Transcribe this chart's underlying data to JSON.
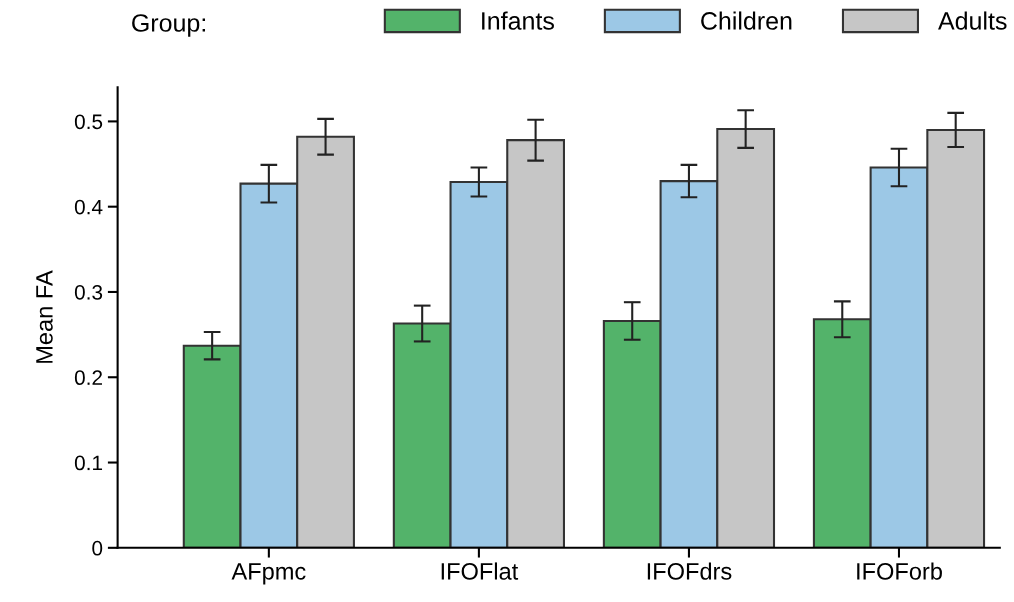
{
  "chart_data": {
    "type": "bar",
    "ylabel": "Mean FA",
    "legend_title": "Group:",
    "legend": "top",
    "categories": [
      "AFpmc",
      "IFOFlat",
      "IFOFdrs",
      "IFOForb"
    ],
    "series": [
      {
        "name": "Infants",
        "color": "#53b36a",
        "values": [
          0.237,
          0.263,
          0.266,
          0.268
        ],
        "errors": [
          0.016,
          0.021,
          0.022,
          0.021
        ]
      },
      {
        "name": "Children",
        "color": "#9cc8e6",
        "values": [
          0.427,
          0.429,
          0.43,
          0.446
        ],
        "errors": [
          0.022,
          0.017,
          0.019,
          0.022
        ]
      },
      {
        "name": "Adults",
        "color": "#c6c6c6",
        "values": [
          0.482,
          0.478,
          0.491,
          0.49
        ],
        "errors": [
          0.021,
          0.024,
          0.022,
          0.02
        ]
      }
    ],
    "ylim": [
      0,
      0.54
    ],
    "yticks": [
      0,
      0.1,
      0.2,
      0.3,
      0.4,
      0.5
    ],
    "grid": false
  }
}
